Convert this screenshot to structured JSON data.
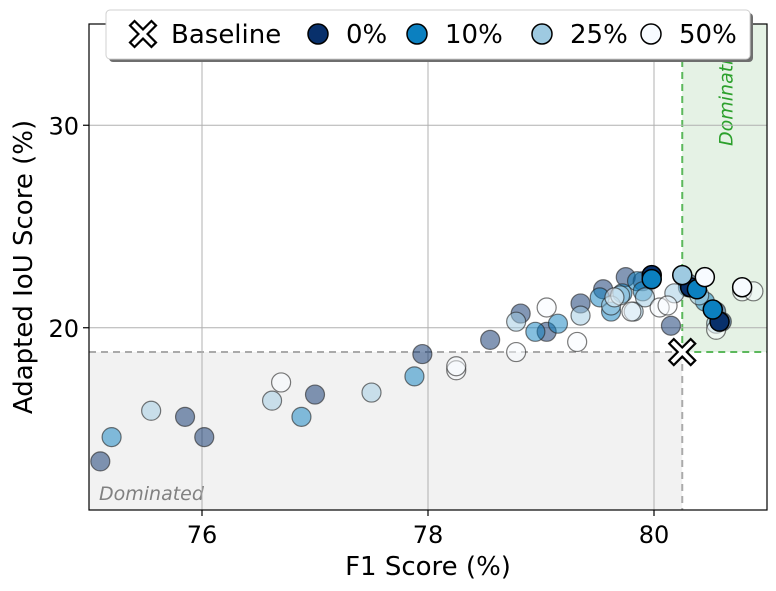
{
  "chart_data": {
    "type": "scatter",
    "xlabel": "F1 Score (%)",
    "ylabel": "Adapted IoU Score (%)",
    "xlim": [
      75.0,
      81.0
    ],
    "ylim": [
      11.0,
      35.0
    ],
    "xticks": [
      76,
      78,
      80
    ],
    "yticks": [
      20,
      30
    ],
    "xtick_labels": [
      "76",
      "78",
      "80"
    ],
    "ytick_labels": [
      "20",
      "30"
    ],
    "grid": true,
    "legend_position": "top",
    "baseline": {
      "x": 80.25,
      "y": 18.8
    },
    "regions": {
      "dominated_label": "Dominated",
      "dominating_label": "Dominating",
      "dominated_color": "#f2f2f2",
      "dominating_color": "#e5f2e5",
      "dominating_border": "#5cb85c",
      "dominating_text_color": "#2ca02c"
    },
    "legend": [
      {
        "label": "Baseline",
        "marker": "x-icon"
      },
      {
        "label": "0%",
        "color": "#08306b"
      },
      {
        "label": "10%",
        "color": "#0b80c0"
      },
      {
        "label": "25%",
        "color": "#9ecae1"
      },
      {
        "label": "50%",
        "color": "#f7fbff"
      }
    ],
    "series": [
      {
        "name": "0%",
        "color": "#08306b",
        "points": [
          [
            75.1,
            13.4
          ],
          [
            75.85,
            15.6
          ],
          [
            76.02,
            14.6
          ],
          [
            77.0,
            16.7
          ],
          [
            77.95,
            18.7
          ],
          [
            78.55,
            19.4
          ],
          [
            78.82,
            20.7
          ],
          [
            79.05,
            19.8
          ],
          [
            79.35,
            21.2
          ],
          [
            79.55,
            21.9
          ],
          [
            79.75,
            22.5
          ],
          [
            79.9,
            22.3
          ],
          [
            80.15,
            20.1
          ],
          [
            80.3,
            22.2
          ],
          [
            80.55,
            20.8
          ],
          [
            80.6,
            20.3
          ]
        ],
        "highlighted": [
          [
            79.98,
            22.6
          ],
          [
            80.32,
            22.0
          ],
          [
            80.58,
            20.3
          ]
        ]
      },
      {
        "name": "10%",
        "color": "#0b80c0",
        "points": [
          [
            75.2,
            14.6
          ],
          [
            76.88,
            15.6
          ],
          [
            77.88,
            17.6
          ],
          [
            78.95,
            19.8
          ],
          [
            79.15,
            20.2
          ],
          [
            79.52,
            21.5
          ],
          [
            79.62,
            20.8
          ],
          [
            79.72,
            21.7
          ],
          [
            79.85,
            22.3
          ],
          [
            79.9,
            21.8
          ],
          [
            80.3,
            22.0
          ],
          [
            80.45,
            21.3
          ]
        ],
        "highlighted": [
          [
            79.98,
            22.4
          ],
          [
            80.38,
            21.9
          ],
          [
            80.52,
            20.9
          ]
        ]
      },
      {
        "name": "25%",
        "color": "#9ecae1",
        "points": [
          [
            75.55,
            15.9
          ],
          [
            76.62,
            16.4
          ],
          [
            77.5,
            16.8
          ],
          [
            78.78,
            20.3
          ],
          [
            79.35,
            20.6
          ],
          [
            79.62,
            21.1
          ],
          [
            79.7,
            21.6
          ],
          [
            79.82,
            20.8
          ],
          [
            79.92,
            21.5
          ],
          [
            80.18,
            21.7
          ],
          [
            80.4,
            21.6
          ],
          [
            80.55,
            20.2
          ]
        ],
        "highlighted": [
          [
            80.25,
            22.6
          ]
        ]
      },
      {
        "name": "50%",
        "color": "#f7fbff",
        "points": [
          [
            76.7,
            17.3
          ],
          [
            78.25,
            17.9
          ],
          [
            78.25,
            18.1
          ],
          [
            78.78,
            18.8
          ],
          [
            79.05,
            21.0
          ],
          [
            79.32,
            19.3
          ],
          [
            79.65,
            21.5
          ],
          [
            79.8,
            20.8
          ],
          [
            80.05,
            21.0
          ],
          [
            80.12,
            21.1
          ],
          [
            80.55,
            19.9
          ],
          [
            80.78,
            21.8
          ],
          [
            80.88,
            21.8
          ]
        ],
        "highlighted": [
          [
            80.45,
            22.5
          ],
          [
            80.78,
            22.0
          ]
        ]
      }
    ]
  }
}
